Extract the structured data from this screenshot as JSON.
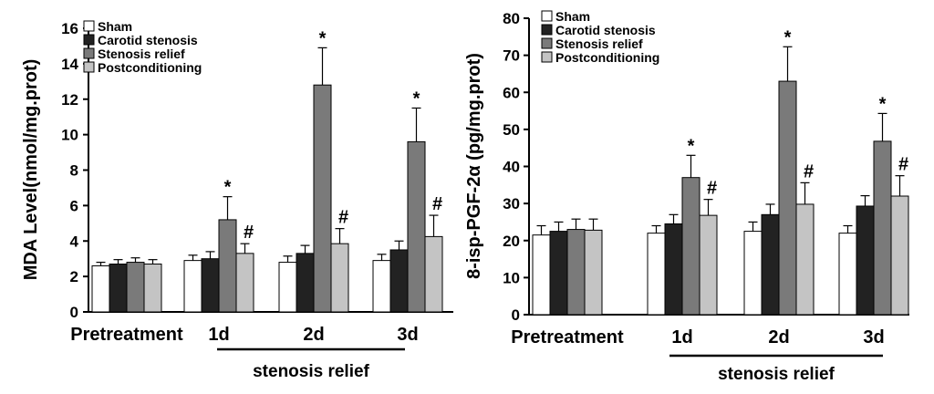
{
  "chart_data": [
    {
      "type": "bar",
      "ylabel": "MDA Level(nmol/mg.prot)",
      "ylim": [
        0,
        16
      ],
      "yticks": [
        0,
        2,
        4,
        6,
        8,
        10,
        12,
        14,
        16
      ],
      "categories": [
        "Pretreatment",
        "1d",
        "2d",
        "3d"
      ],
      "group_label": "stenosis relief",
      "series": [
        {
          "name": "Sham",
          "color": "#ffffff",
          "values": [
            2.6,
            2.9,
            2.8,
            2.9
          ],
          "errors": [
            0.2,
            0.3,
            0.35,
            0.35
          ]
        },
        {
          "name": "Carotid stenosis",
          "color": "#222222",
          "values": [
            2.7,
            3.0,
            3.3,
            3.5
          ],
          "errors": [
            0.25,
            0.4,
            0.45,
            0.5
          ]
        },
        {
          "name": "Stenosis relief",
          "color": "#7a7a7a",
          "values": [
            2.8,
            5.2,
            12.8,
            9.6
          ],
          "errors": [
            0.25,
            1.3,
            2.1,
            1.9
          ]
        },
        {
          "name": "Postconditioning",
          "color": "#c4c4c4",
          "values": [
            2.7,
            3.3,
            3.85,
            4.25
          ],
          "errors": [
            0.25,
            0.55,
            0.85,
            1.2
          ]
        }
      ],
      "annotations": [
        {
          "label": "*",
          "category": 1,
          "series": 2
        },
        {
          "label": "#",
          "category": 1,
          "series": 3
        },
        {
          "label": "*",
          "category": 2,
          "series": 2
        },
        {
          "label": "#",
          "category": 2,
          "series": 3
        },
        {
          "label": "*",
          "category": 3,
          "series": 2
        },
        {
          "label": "#",
          "category": 3,
          "series": 3
        }
      ]
    },
    {
      "type": "bar",
      "ylabel": "8-isp-PGF-2α (pg/mg.prot)",
      "ylim": [
        0,
        80
      ],
      "yticks": [
        0,
        10,
        20,
        30,
        40,
        50,
        60,
        70,
        80
      ],
      "categories": [
        "Pretreatment",
        "1d",
        "2d",
        "3d"
      ],
      "group_label": "stenosis relief",
      "series": [
        {
          "name": "Sham",
          "color": "#ffffff",
          "values": [
            21.5,
            22.0,
            22.5,
            22.0
          ],
          "errors": [
            2.5,
            2.0,
            2.5,
            2.0
          ]
        },
        {
          "name": "Carotid stenosis",
          "color": "#222222",
          "values": [
            22.5,
            24.5,
            27.0,
            29.3
          ],
          "errors": [
            2.5,
            2.5,
            2.8,
            2.8
          ]
        },
        {
          "name": "Stenosis relief",
          "color": "#7a7a7a",
          "values": [
            23.0,
            37.0,
            63.0,
            46.8
          ],
          "errors": [
            2.8,
            6.0,
            9.3,
            7.5
          ]
        },
        {
          "name": "Postconditioning",
          "color": "#c4c4c4",
          "values": [
            22.8,
            26.8,
            29.8,
            32.0
          ],
          "errors": [
            3.0,
            4.3,
            5.8,
            5.5
          ]
        }
      ],
      "annotations": [
        {
          "label": "*",
          "category": 1,
          "series": 2
        },
        {
          "label": "#",
          "category": 1,
          "series": 3
        },
        {
          "label": "*",
          "category": 2,
          "series": 2
        },
        {
          "label": "#",
          "category": 2,
          "series": 3
        },
        {
          "label": "*",
          "category": 3,
          "series": 2
        },
        {
          "label": "#",
          "category": 3,
          "series": 3
        }
      ]
    }
  ]
}
